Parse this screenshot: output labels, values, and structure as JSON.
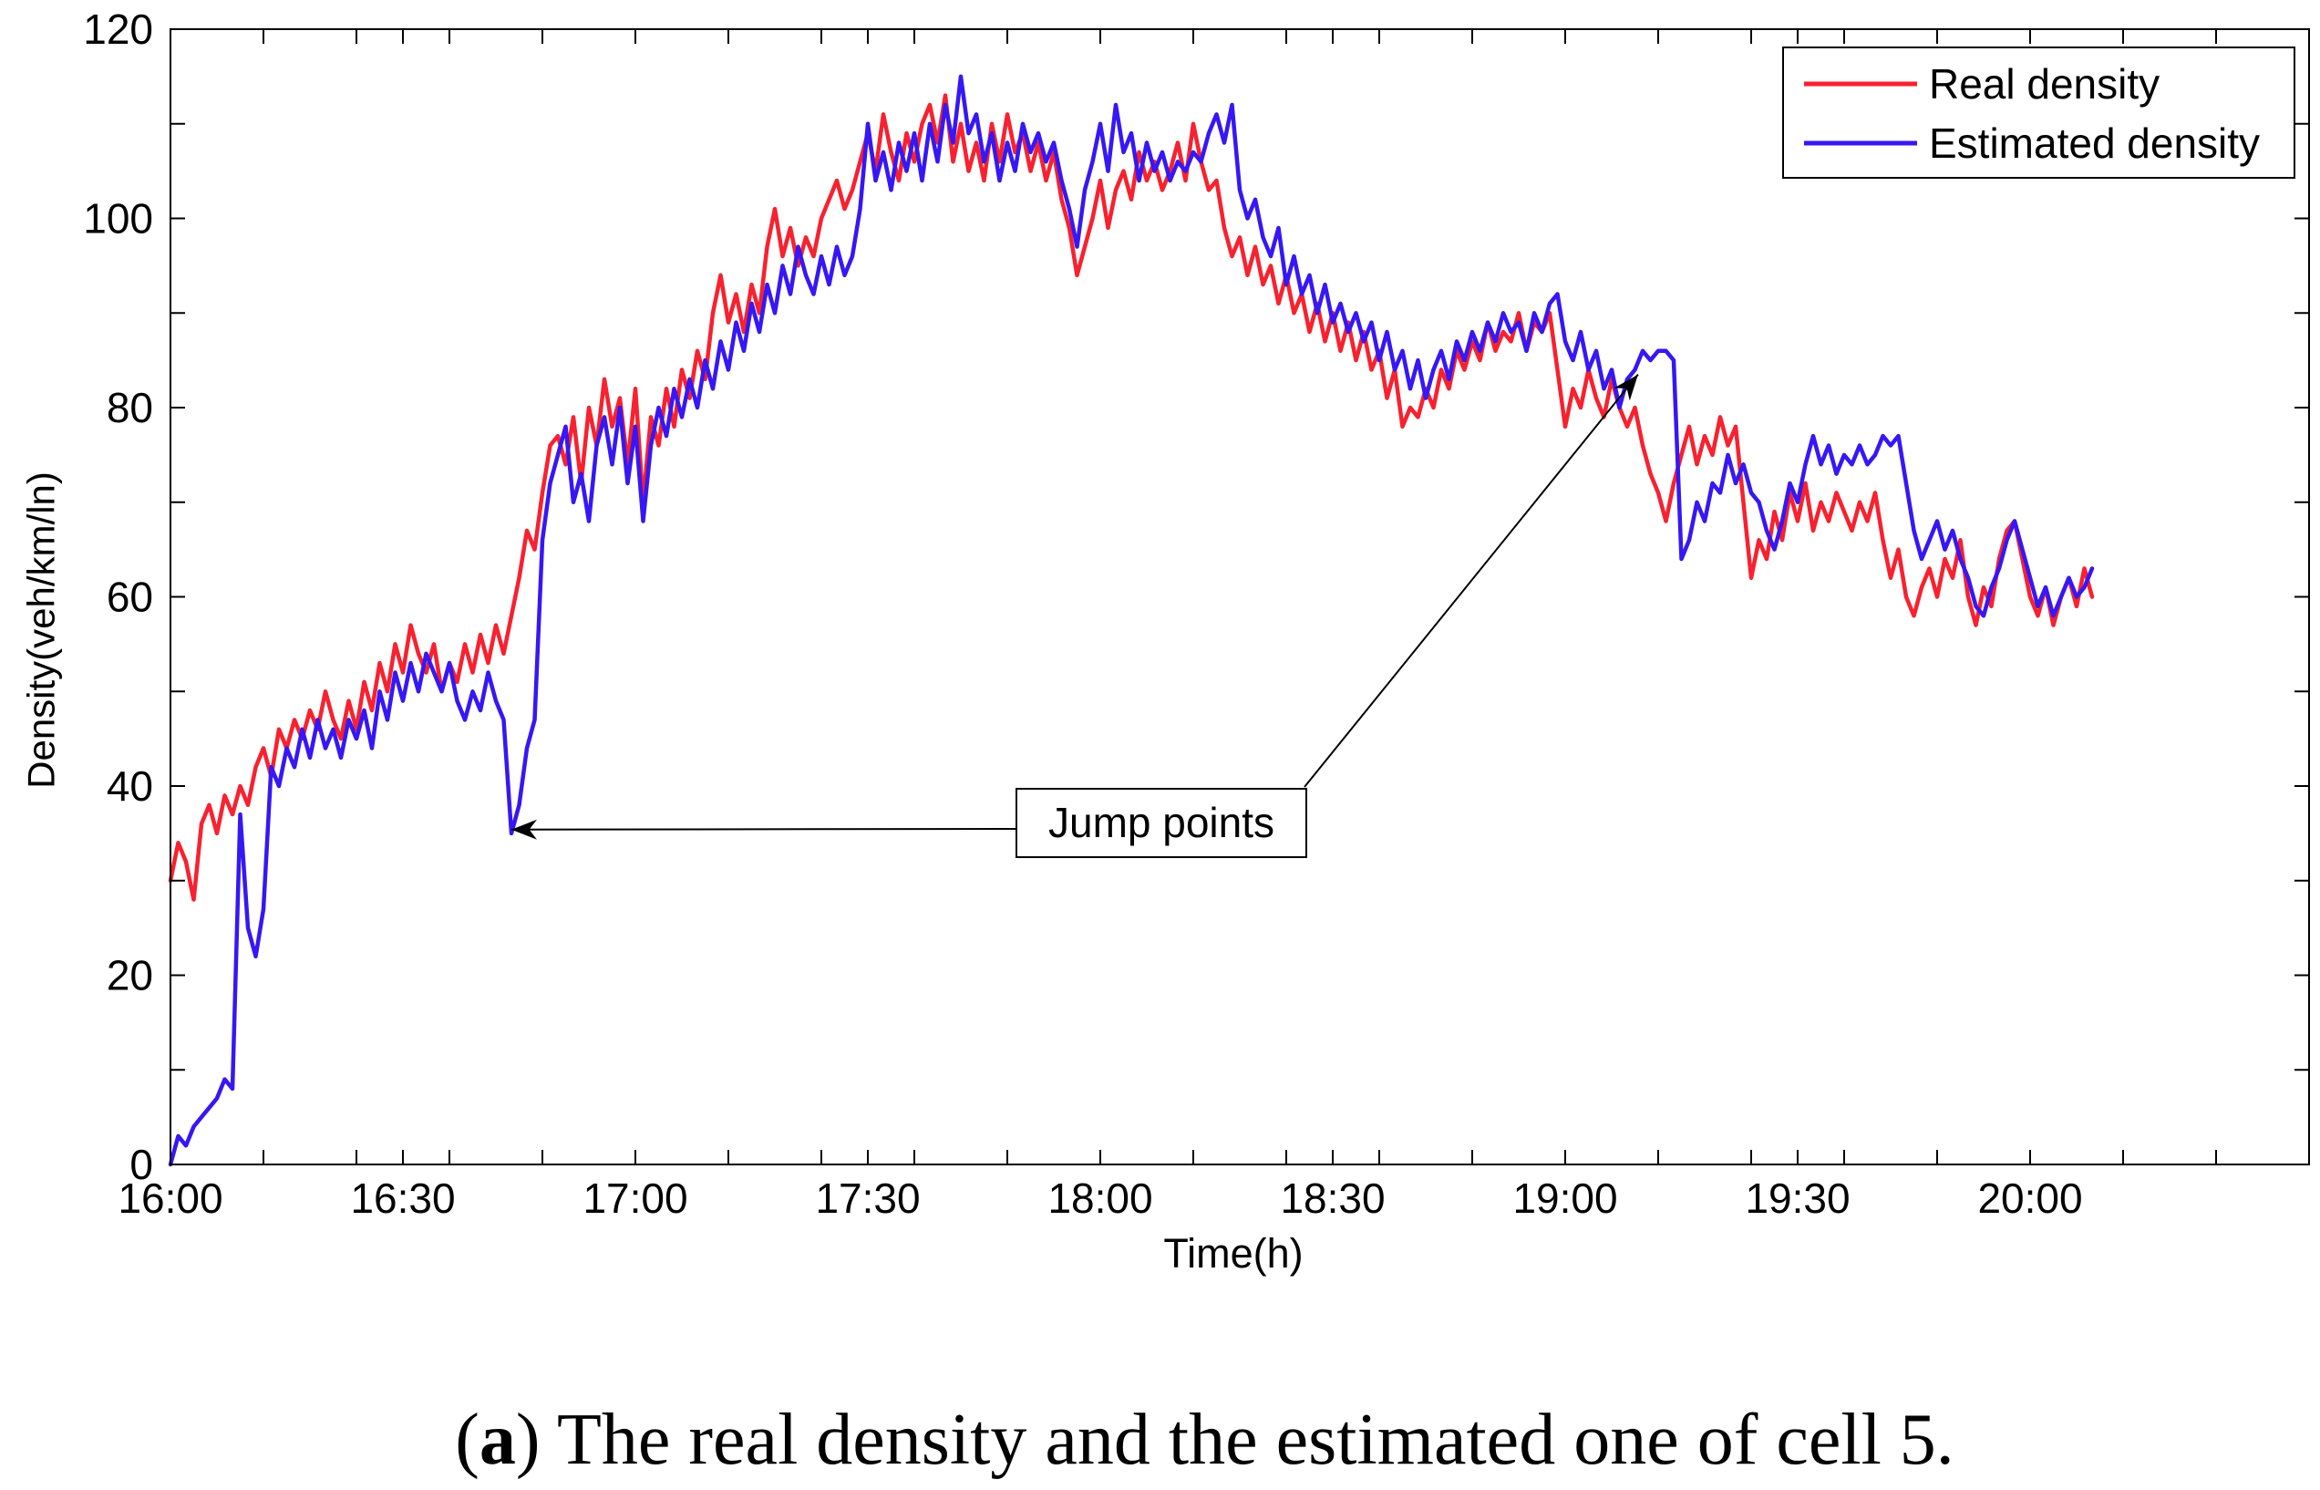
{
  "chart_data": {
    "type": "line",
    "title": "",
    "xlabel": "Time(h)",
    "ylabel": "Density(veh/km/ln)",
    "x_units": "minutes after 16:00",
    "x_start": 0,
    "x_step": 1,
    "xlim": [
      0,
      276
    ],
    "ylim": [
      0,
      120
    ],
    "x_ticks": [
      0,
      30,
      60,
      90,
      120,
      150,
      180,
      210,
      240
    ],
    "x_tick_labels": [
      "16:00",
      "16:30",
      "17:00",
      "17:30",
      "18:00",
      "18:30",
      "19:00",
      "19:30",
      "20:00"
    ],
    "x_minor_tick_step": 12,
    "y_ticks": [
      0,
      20,
      40,
      60,
      80,
      100,
      120
    ],
    "y_tick_labels": [
      "0",
      "20",
      "40",
      "60",
      "80",
      "100",
      "120"
    ],
    "y_minor_tick_step": 10,
    "grid": false,
    "legend_position": "top-right",
    "series": [
      {
        "name": "Real density",
        "color": "#f8212f",
        "values": [
          30,
          34,
          32,
          28,
          36,
          38,
          35,
          39,
          37,
          40,
          38,
          42,
          44,
          41,
          46,
          44,
          47,
          45,
          48,
          46,
          50,
          47,
          45,
          49,
          46,
          51,
          48,
          53,
          50,
          55,
          52,
          57,
          54,
          52,
          55,
          50,
          53,
          51,
          55,
          52,
          56,
          53,
          57,
          54,
          58,
          62,
          67,
          65,
          71,
          76,
          77,
          74,
          79,
          72,
          80,
          76,
          83,
          78,
          81,
          74,
          82,
          70,
          79,
          76,
          82,
          78,
          84,
          81,
          86,
          83,
          90,
          94,
          89,
          92,
          88,
          93,
          90,
          97,
          101,
          96,
          99,
          95,
          98,
          96,
          100,
          102,
          104,
          101,
          103,
          106,
          109,
          105,
          111,
          107,
          104,
          109,
          106,
          110,
          112,
          108,
          113,
          106,
          110,
          105,
          108,
          104,
          110,
          106,
          111,
          107,
          109,
          105,
          108,
          104,
          107,
          102,
          99,
          94,
          97,
          100,
          104,
          99,
          103,
          105,
          102,
          107,
          104,
          106,
          103,
          105,
          108,
          104,
          110,
          106,
          103,
          104,
          99,
          96,
          98,
          94,
          97,
          93,
          95,
          91,
          94,
          90,
          92,
          88,
          91,
          87,
          90,
          86,
          89,
          85,
          88,
          84,
          86,
          81,
          84,
          78,
          80,
          79,
          82,
          80,
          84,
          82,
          86,
          84,
          87,
          85,
          89,
          86,
          88,
          87,
          90,
          86,
          89,
          88,
          90,
          84,
          78,
          82,
          80,
          84,
          81,
          79,
          83,
          80,
          78,
          80,
          76,
          73,
          71,
          68,
          72,
          75,
          78,
          74,
          77,
          75,
          79,
          76,
          78,
          70,
          62,
          66,
          64,
          69,
          66,
          71,
          68,
          72,
          67,
          70,
          68,
          71,
          69,
          67,
          70,
          68,
          71,
          66,
          62,
          65,
          60,
          58,
          61,
          63,
          60,
          64,
          62,
          66,
          60,
          57,
          61,
          59,
          64,
          67,
          68,
          64,
          60,
          58,
          61,
          57,
          60,
          62,
          59,
          63,
          60
        ]
      },
      {
        "name": "Estimated density",
        "color": "#3617f5",
        "values": [
          0,
          3,
          2,
          4,
          5,
          6,
          7,
          9,
          8,
          37,
          25,
          22,
          27,
          42,
          40,
          44,
          42,
          46,
          43,
          47,
          44,
          46,
          43,
          47,
          45,
          48,
          44,
          50,
          47,
          52,
          49,
          53,
          50,
          54,
          52,
          50,
          53,
          49,
          47,
          50,
          48,
          52,
          49,
          47,
          35,
          38,
          44,
          47,
          66,
          72,
          75,
          78,
          70,
          73,
          68,
          76,
          79,
          74,
          80,
          72,
          78,
          68,
          76,
          80,
          77,
          82,
          79,
          83,
          80,
          85,
          82,
          87,
          84,
          89,
          86,
          91,
          88,
          93,
          90,
          95,
          92,
          97,
          94,
          92,
          96,
          93,
          97,
          94,
          96,
          101,
          110,
          104,
          107,
          103,
          108,
          105,
          109,
          104,
          110,
          106,
          112,
          108,
          115,
          109,
          111,
          106,
          109,
          104,
          108,
          105,
          110,
          107,
          109,
          106,
          108,
          104,
          101,
          97,
          103,
          106,
          110,
          105,
          112,
          107,
          109,
          104,
          108,
          105,
          107,
          104,
          106,
          105,
          107,
          106,
          109,
          111,
          108,
          112,
          103,
          100,
          102,
          98,
          96,
          99,
          93,
          96,
          92,
          94,
          90,
          93,
          89,
          91,
          88,
          90,
          87,
          89,
          85,
          88,
          84,
          86,
          82,
          85,
          81,
          84,
          86,
          83,
          87,
          85,
          88,
          86,
          89,
          87,
          90,
          88,
          89,
          86,
          90,
          88,
          91,
          92,
          87,
          85,
          88,
          84,
          86,
          82,
          84,
          80,
          83,
          84,
          86,
          85,
          86,
          86,
          85,
          64,
          66,
          70,
          68,
          72,
          71,
          75,
          72,
          74,
          71,
          70,
          67,
          65,
          68,
          72,
          70,
          74,
          77,
          74,
          76,
          73,
          75,
          74,
          76,
          74,
          75,
          77,
          76,
          77,
          72,
          67,
          64,
          66,
          68,
          65,
          67,
          64,
          62,
          59,
          58,
          61,
          63,
          66,
          68,
          65,
          62,
          59,
          61,
          58,
          60,
          62,
          60,
          61,
          63
        ]
      }
    ],
    "annotations": [
      {
        "text": "Jump points",
        "targets": [
          {
            "time_min": 44,
            "density": 35.4
          },
          {
            "time_min": 189.4,
            "density": 83.5
          }
        ]
      }
    ]
  },
  "caption": {
    "open": "(",
    "label": "a",
    "close": ")",
    "text": "The real density and the estimated one of cell 5."
  }
}
